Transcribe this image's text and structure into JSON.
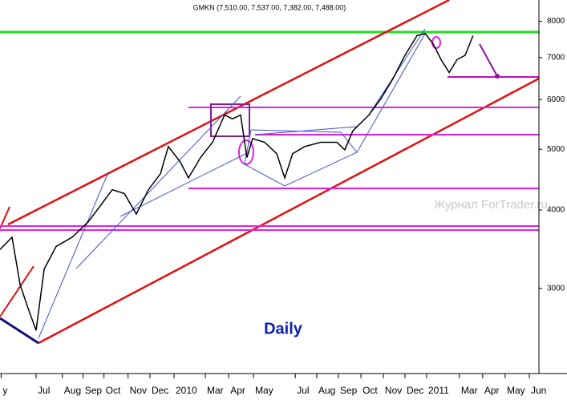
{
  "chart_data": {
    "type": "line",
    "title": "GMKN (7,510.00, 7,537.00, 7,382.00, 7,488.00)",
    "annotation": "Daily",
    "watermark": "Журнал ForTrader.ru",
    "color": "#000000",
    "log_scale": true,
    "x": [
      4.35,
      4.9,
      5.27,
      5.63,
      6.0,
      6.37,
      6.92,
      7.65,
      8.38,
      8.93,
      9.48,
      10.03,
      10.58,
      11.13,
      11.68,
      12.04,
      12.59,
      12.96,
      13.51,
      14.06,
      14.61,
      14.97,
      15.34,
      15.63,
      15.89,
      16.44,
      16.99,
      17.36,
      17.72,
      18.27,
      19.0,
      19.74,
      20.1,
      20.47,
      21.2,
      21.75,
      22.3,
      22.85,
      23.4,
      23.77,
      24.13,
      24.5,
      24.87,
      25.23,
      25.6,
      25.96
    ],
    "values": [
      3460,
      3620,
      3040,
      2790,
      2570,
      3220,
      3500,
      3620,
      3830,
      4060,
      4310,
      4250,
      3940,
      4310,
      4570,
      5050,
      4770,
      4500,
      4850,
      5130,
      5670,
      5590,
      5670,
      4850,
      5200,
      5130,
      4920,
      4500,
      4920,
      5050,
      5130,
      5130,
      4990,
      5350,
      5670,
      6020,
      6475,
      7060,
      7590,
      7650,
      7370,
      6950,
      6630,
      6950,
      7060,
      7590
    ],
    "xlim": [
      4.35,
      28.97
    ],
    "xticks": [
      {
        "value": 4.4,
        "label": "y"
      },
      {
        "value": 6.0,
        "label": "Jul"
      },
      {
        "value": 7.2,
        "label": "Aug"
      },
      {
        "value": 8.15,
        "label": "Sep"
      },
      {
        "value": 9.1,
        "label": "Oct"
      },
      {
        "value": 10.2,
        "label": "Nov"
      },
      {
        "value": 11.2,
        "label": "Dec"
      },
      {
        "value": 12.3,
        "label": "2010"
      },
      {
        "value": 13.73,
        "label": "Mar"
      },
      {
        "value": 14.8,
        "label": "Apr"
      },
      {
        "value": 15.93,
        "label": "May"
      },
      {
        "value": 17.84,
        "label": "Jul"
      },
      {
        "value": 18.82,
        "label": "Aug"
      },
      {
        "value": 19.81,
        "label": "Sep"
      },
      {
        "value": 20.84,
        "label": "Oct"
      },
      {
        "value": 21.86,
        "label": "Nov"
      },
      {
        "value": 22.85,
        "label": "Dec"
      },
      {
        "value": 23.84,
        "label": "2011"
      },
      {
        "value": 25.34,
        "label": "Mar"
      },
      {
        "value": 26.4,
        "label": "Apr"
      },
      {
        "value": 27.43,
        "label": "May"
      },
      {
        "value": 28.53,
        "label": "Jun"
      }
    ],
    "ylim": [
      2200,
      8450
    ],
    "yticks": [
      3000,
      4000,
      5000,
      6000,
      7000,
      8000
    ]
  }
}
